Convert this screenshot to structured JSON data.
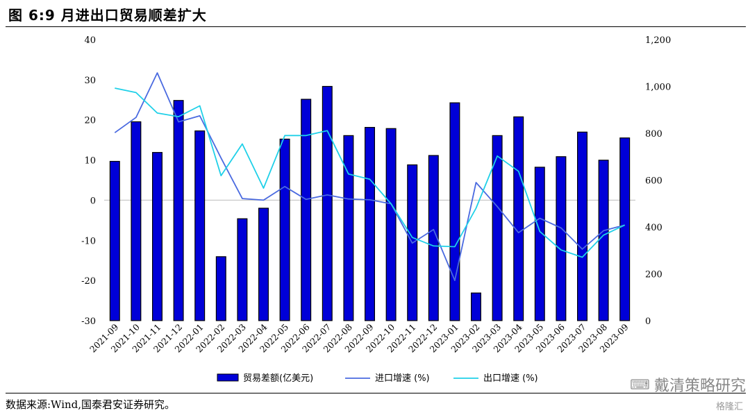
{
  "title": "图 6:9 月进出口贸易顺差扩大",
  "source": "数据来源:Wind,国泰君安证券研究。",
  "watermark": "戴清策略研究",
  "logo": "格隆汇",
  "colors": {
    "bar": "#0000d8",
    "bar_edge": "#000000",
    "import": "#4a6ae0",
    "export": "#1fd0e8"
  },
  "chart_data": {
    "type": "bar",
    "title": "",
    "categories": [
      "2021-09",
      "2021-10",
      "2021-11",
      "2021-12",
      "2022-01",
      "2022-02",
      "2022-03",
      "2022-04",
      "2022-05",
      "2022-06",
      "2022-07",
      "2022-08",
      "2022-09",
      "2022-10",
      "2022-11",
      "2022-12",
      "2023-01",
      "2023-02",
      "2023-03",
      "2023-04",
      "2023-05",
      "2023-06",
      "2023-07",
      "2023-08",
      "2023-09"
    ],
    "y_left": {
      "min": -30,
      "max": 40,
      "step": 10,
      "ticks": [
        "-30",
        "-20",
        "-10",
        "0",
        "10",
        "20",
        "30",
        "40"
      ]
    },
    "y_right": {
      "min": 0,
      "max": 1200,
      "step": 200,
      "ticks": [
        "0",
        "200",
        "400",
        "600",
        "800",
        "1,000",
        "1,200"
      ]
    },
    "series": [
      {
        "name": "贸易差额(亿美元)",
        "type": "bar",
        "axis": "right",
        "values": [
          680,
          849,
          718,
          940,
          810,
          273,
          435,
          480,
          775,
          945,
          1000,
          790,
          825,
          820,
          665,
          705,
          930,
          118,
          790,
          870,
          655,
          700,
          805,
          685,
          780
        ]
      },
      {
        "name": "进口增速 (%)",
        "type": "line",
        "axis": "left",
        "values": [
          16.8,
          20.6,
          31.7,
          19.5,
          21.0,
          10.5,
          0.4,
          0.0,
          3.4,
          0.2,
          1.3,
          0.3,
          0.1,
          -0.9,
          -10.7,
          -7.3,
          -20.0,
          4.4,
          -1.6,
          -8.1,
          -4.5,
          -6.9,
          -12.2,
          -7.6,
          -6.2
        ]
      },
      {
        "name": "出口增速 (%)",
        "type": "line",
        "axis": "left",
        "values": [
          27.9,
          26.8,
          21.7,
          20.8,
          23.5,
          6.1,
          14.0,
          3.0,
          16.1,
          16.1,
          17.3,
          6.5,
          5.2,
          -0.9,
          -9.3,
          -11.4,
          -11.6,
          -2.0,
          11.0,
          7.2,
          -7.8,
          -12.4,
          -14.2,
          -8.7,
          -6.2
        ]
      }
    ],
    "legend_position": "bottom-center",
    "grid": false
  }
}
